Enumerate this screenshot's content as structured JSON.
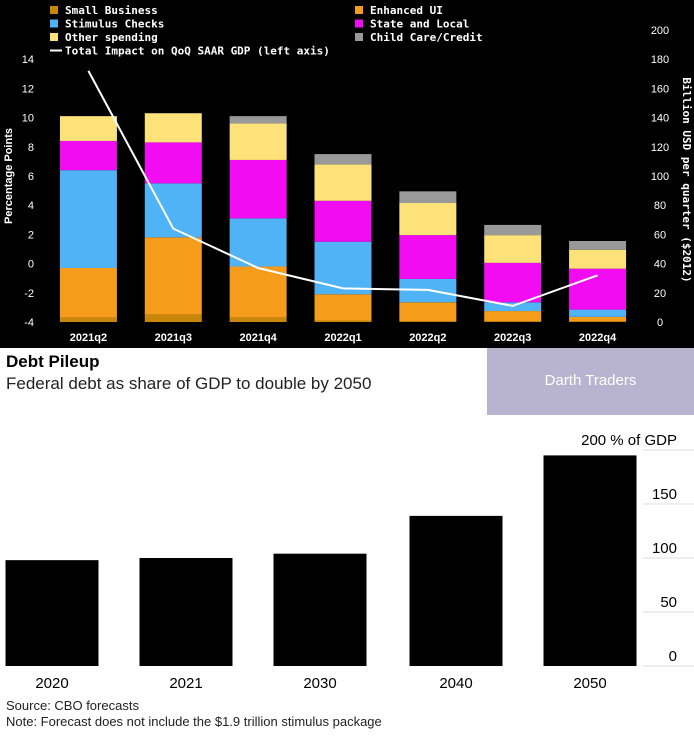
{
  "top_chart": {
    "legend": [
      {
        "label": "Small Business",
        "color": "#c8860a"
      },
      {
        "label": "Enhanced UI",
        "color": "#f59c1a"
      },
      {
        "label": "Stimulus Checks",
        "color": "#4fb3f6"
      },
      {
        "label": "State and Local",
        "color": "#f20cf2"
      },
      {
        "label": "Other spending",
        "color": "#fde27a"
      },
      {
        "label": "Child Care/Credit",
        "color": "#999999"
      },
      {
        "label": "Total Impact on QoQ SAAR GDP (left axis)",
        "color": "#ffffff"
      }
    ],
    "left_axis_label": "Percentage Points",
    "right_axis_label": "Billion USD per quarter ($2012)"
  },
  "chart_data": [
    {
      "type": "bar",
      "stacked": true,
      "categories": [
        "2021q2",
        "2021q3",
        "2021q4",
        "2022q1",
        "2022q2",
        "2022q3",
        "2022q4"
      ],
      "series": [
        {
          "name": "Small Business",
          "color": "#c8860a",
          "values": [
            3,
            5,
            3,
            1,
            0.5,
            0.5,
            0.5
          ]
        },
        {
          "name": "Enhanced UI",
          "color": "#f59c1a",
          "values": [
            34,
            53,
            35,
            18,
            13,
            7,
            3
          ]
        },
        {
          "name": "Stimulus Checks",
          "color": "#4fb3f6",
          "values": [
            67,
            37,
            33,
            36,
            16,
            6,
            5
          ]
        },
        {
          "name": "State and Local",
          "color": "#f20cf2",
          "values": [
            20,
            28,
            40,
            28,
            30,
            27,
            28
          ]
        },
        {
          "name": "Other spending",
          "color": "#fde27a",
          "values": [
            17,
            20,
            25,
            25,
            22,
            19,
            13
          ]
        },
        {
          "name": "Child Care/Credit",
          "color": "#999999",
          "values": [
            0,
            0,
            5,
            7,
            8,
            7,
            6
          ]
        }
      ],
      "line_series": {
        "name": "Total Impact on QoQ SAAR GDP (left axis)",
        "axis": "left",
        "values": [
          13.2,
          2.4,
          -0.3,
          -1.7,
          -1.8,
          -2.9,
          -0.8
        ]
      },
      "y_left": {
        "label": "Percentage Points",
        "ticks": [
          -4,
          -2,
          0,
          2,
          4,
          6,
          8,
          10,
          12,
          14
        ],
        "range": [
          -4,
          16
        ]
      },
      "y_right": {
        "label": "Billion USD per quarter ($2012)",
        "ticks": [
          0,
          20,
          40,
          60,
          80,
          100,
          120,
          140,
          160,
          180,
          200
        ],
        "range": [
          0,
          200
        ]
      },
      "legend_position": "top",
      "grid": false
    },
    {
      "type": "bar",
      "title": "Debt Pileup",
      "subtitle": "Federal debt as share of GDP to double by 2050",
      "categories": [
        "2020",
        "2021",
        "2030",
        "2040",
        "2050"
      ],
      "values": [
        98,
        100,
        104,
        139,
        195
      ],
      "y_ticks": [
        "0",
        "50",
        "100",
        "150",
        "200 % of GDP"
      ],
      "y_tick_values": [
        0,
        50,
        100,
        150,
        200
      ],
      "ylim": [
        0,
        200
      ],
      "grid": false
    }
  ],
  "debt": {
    "title": "Debt Pileup",
    "subtitle": "Federal debt as share of GDP to double by 2050",
    "brand": "Darth Traders",
    "source": "Source: CBO forecasts",
    "note": "Note: Forecast does not include the $1.9 trillion stimulus package"
  }
}
